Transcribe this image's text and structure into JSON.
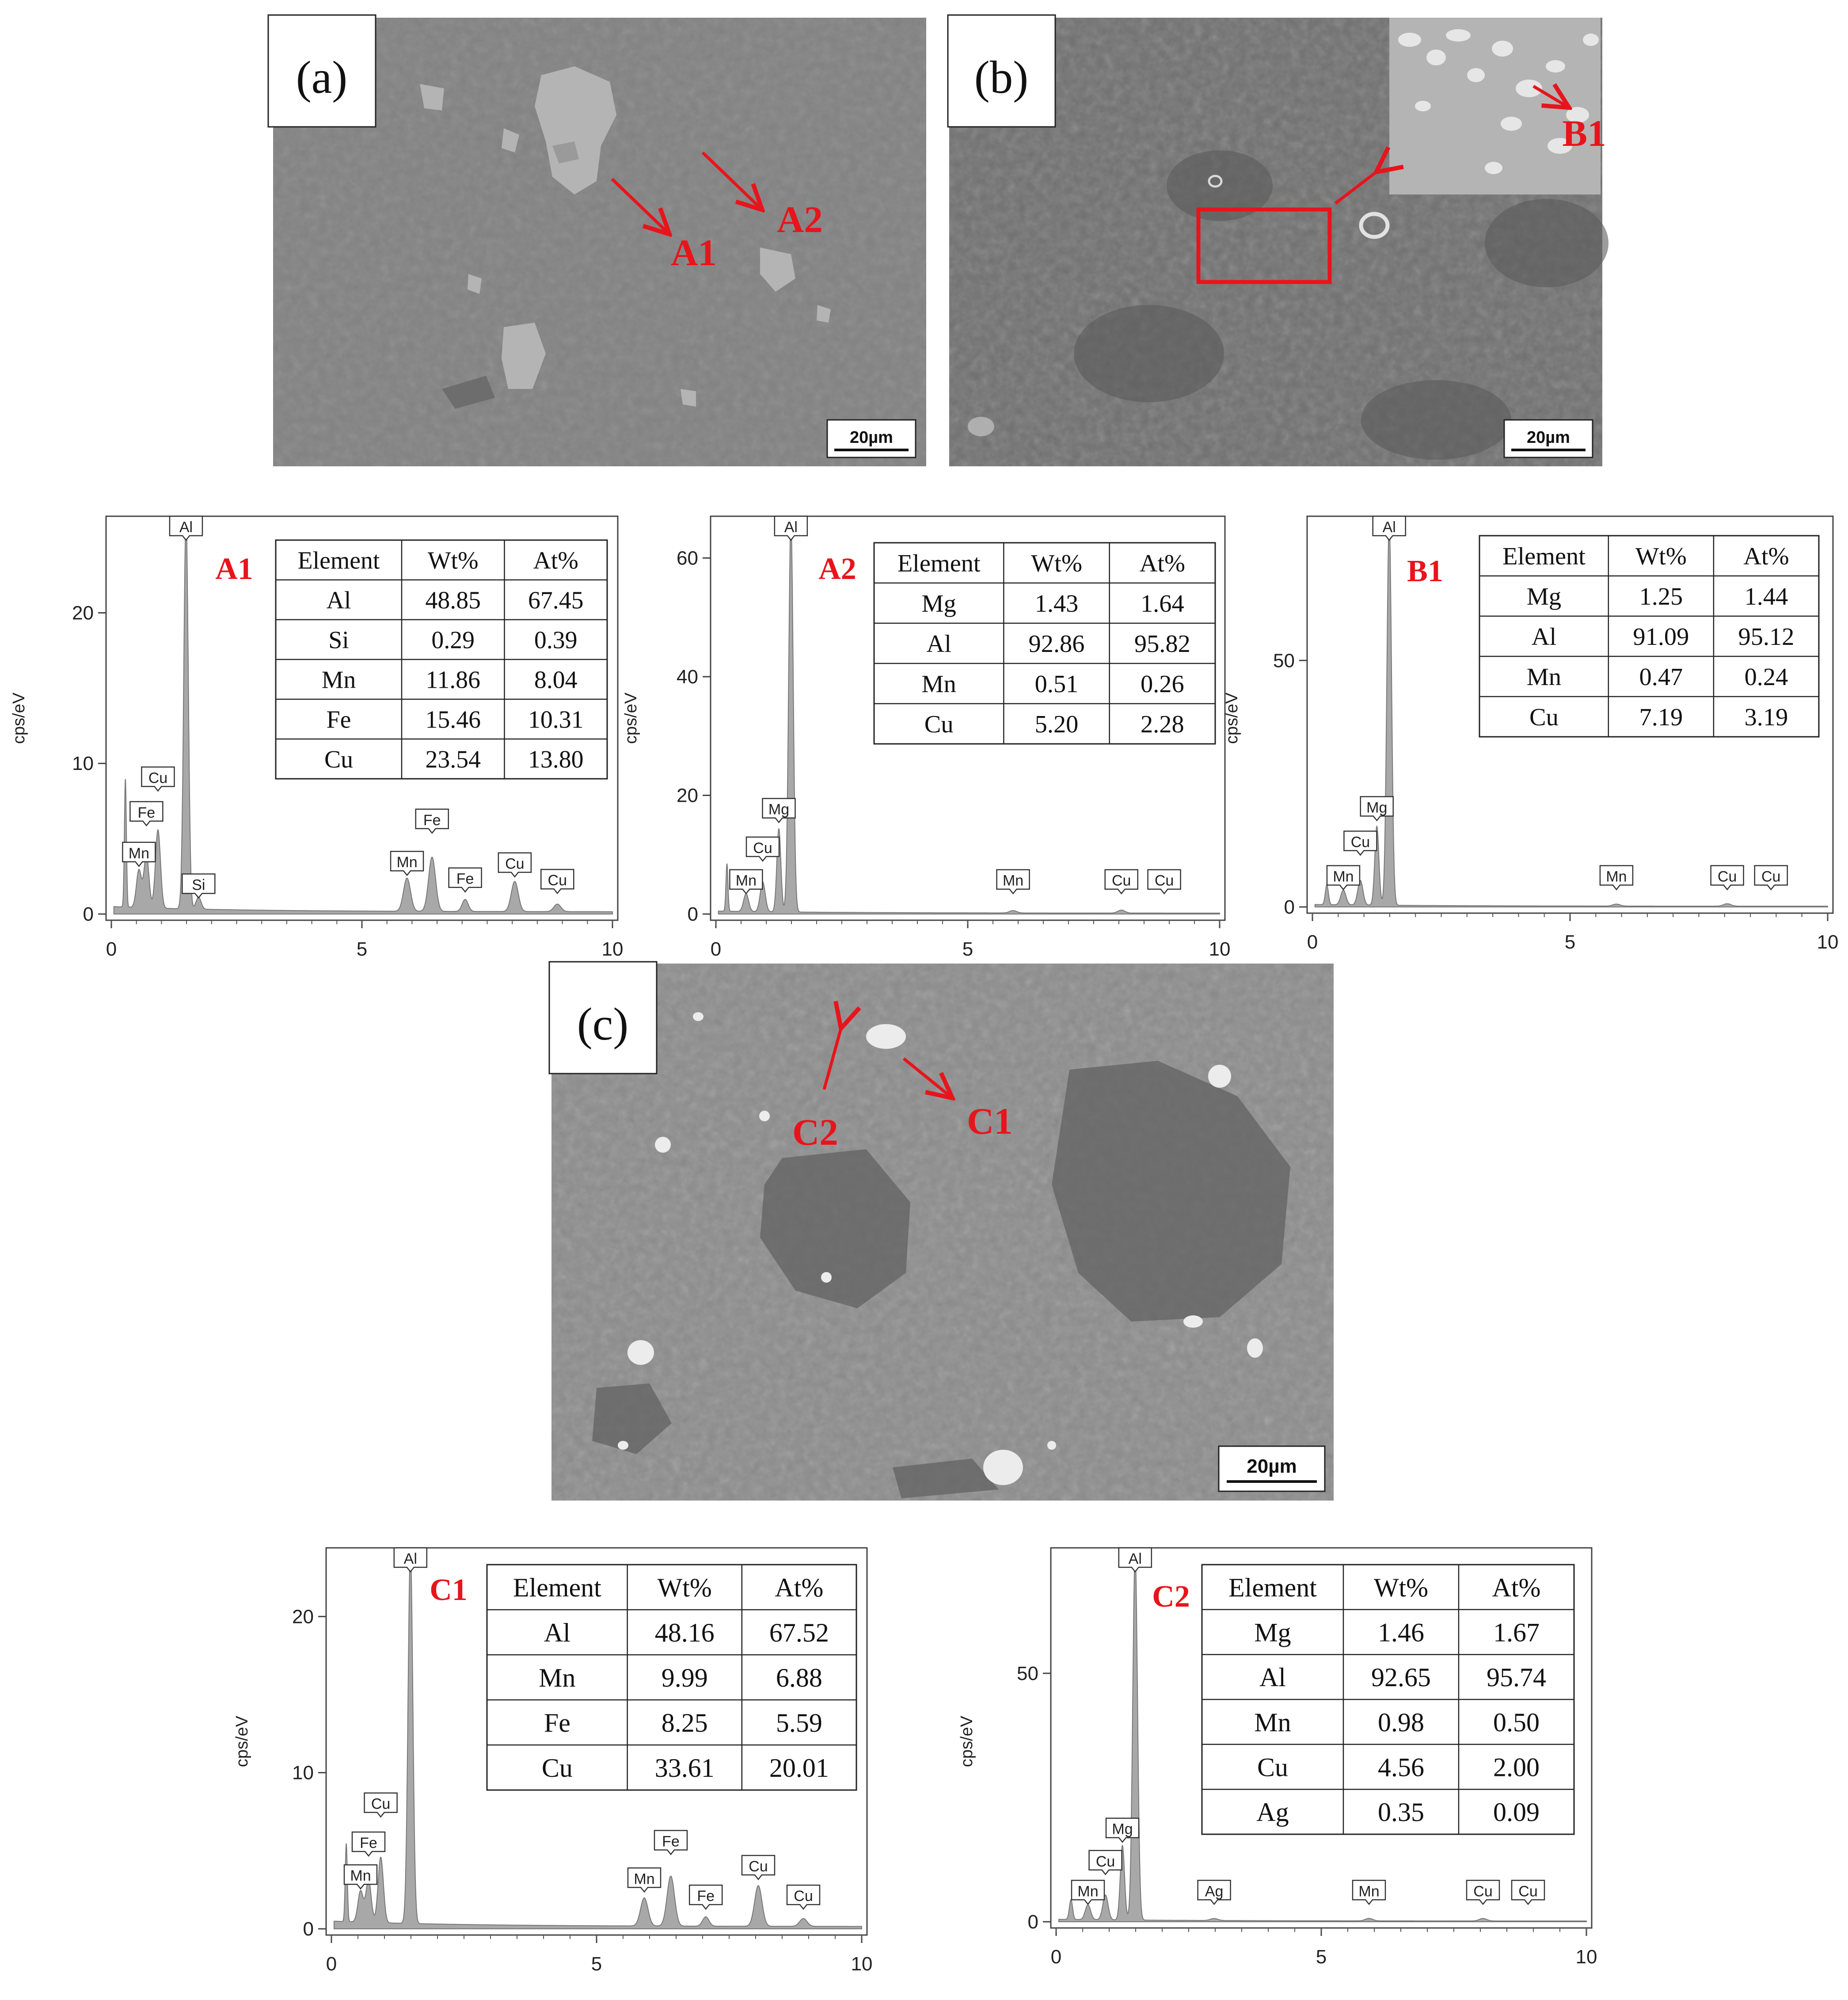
{
  "micrographs": [
    {
      "id": "a",
      "label": "(a)",
      "scale": "20µm",
      "annotations": [
        "A1",
        "A2"
      ]
    },
    {
      "id": "b",
      "label": "(b)",
      "scale": "20µm",
      "annotations": [
        "B1"
      ]
    },
    {
      "id": "c",
      "label": "(c)",
      "scale": "20µm",
      "annotations": [
        "C1",
        "C2"
      ]
    }
  ],
  "colors": {
    "annotation": "#e8141c",
    "spectrum_fill": "#a8a8a8",
    "spectrum_line": "#777777",
    "micrograph_a": "#828282",
    "micrograph_b": "#707070",
    "micrograph_c": "#8c8c8c"
  },
  "chart_data": [
    {
      "id": "A1",
      "type": "area",
      "label": "A1",
      "ylabel": "cps/eV",
      "xlim": [
        0,
        10
      ],
      "ylim": [
        0,
        26
      ],
      "xticks": [
        0,
        5,
        10
      ],
      "yticks": [
        0,
        10,
        20
      ],
      "peaks": [
        {
          "x": 0.28,
          "y": 8.5,
          "w": 0.02
        },
        {
          "x": 0.55,
          "y": 2.5,
          "w": 0.05
        },
        {
          "x": 0.7,
          "y": 3.5,
          "w": 0.05
        },
        {
          "x": 0.93,
          "y": 5.2,
          "w": 0.05
        },
        {
          "x": 1.49,
          "y": 26,
          "w": 0.045
        },
        {
          "x": 1.74,
          "y": 0.8,
          "w": 0.05
        },
        {
          "x": 5.9,
          "y": 2.2,
          "w": 0.07
        },
        {
          "x": 6.4,
          "y": 3.6,
          "w": 0.07
        },
        {
          "x": 7.06,
          "y": 0.8,
          "w": 0.06
        },
        {
          "x": 8.05,
          "y": 2.0,
          "w": 0.07
        },
        {
          "x": 8.9,
          "y": 0.5,
          "w": 0.07
        }
      ],
      "element_labels": [
        {
          "text": "Al",
          "x": 1.49,
          "y": 26.0
        },
        {
          "text": "Cu",
          "x": 0.93,
          "y": 8.0
        },
        {
          "text": "Fe",
          "x": 0.7,
          "y": 5.7
        },
        {
          "text": "Mn",
          "x": 0.55,
          "y": 3.0
        },
        {
          "text": "Si",
          "x": 1.74,
          "y": 0.9
        },
        {
          "text": "Mn",
          "x": 5.9,
          "y": 2.4
        },
        {
          "text": "Fe",
          "x": 6.4,
          "y": 5.2
        },
        {
          "text": "Fe",
          "x": 7.06,
          "y": 1.3
        },
        {
          "text": "Cu",
          "x": 8.05,
          "y": 2.3
        },
        {
          "text": "Cu",
          "x": 8.9,
          "y": 1.2
        }
      ],
      "table": {
        "columns": [
          "Element",
          "Wt%",
          "At%"
        ],
        "rows": [
          [
            "Al",
            "48.85",
            "67.45"
          ],
          [
            "Si",
            "0.29",
            "0.39"
          ],
          [
            "Mn",
            "11.86",
            "8.04"
          ],
          [
            "Fe",
            "15.46",
            "10.31"
          ],
          [
            "Cu",
            "23.54",
            "13.80"
          ]
        ]
      }
    },
    {
      "id": "A2",
      "type": "area",
      "label": "A2",
      "ylabel": "cps/eV",
      "xlim": [
        0,
        10
      ],
      "ylim": [
        0,
        66
      ],
      "xticks": [
        0,
        5,
        10
      ],
      "yticks": [
        0,
        20,
        40,
        60
      ],
      "peaks": [
        {
          "x": 0.22,
          "y": 8,
          "w": 0.02
        },
        {
          "x": 0.6,
          "y": 3,
          "w": 0.05
        },
        {
          "x": 0.93,
          "y": 5,
          "w": 0.05
        },
        {
          "x": 1.25,
          "y": 14,
          "w": 0.04
        },
        {
          "x": 1.49,
          "y": 66,
          "w": 0.045
        },
        {
          "x": 5.9,
          "y": 0.4,
          "w": 0.07
        },
        {
          "x": 8.05,
          "y": 0.5,
          "w": 0.07
        }
      ],
      "element_labels": [
        {
          "text": "Al",
          "x": 1.49,
          "y": 66
        },
        {
          "text": "Mg",
          "x": 1.25,
          "y": 15
        },
        {
          "text": "Cu",
          "x": 0.93,
          "y": 8.5
        },
        {
          "text": "Mn",
          "x": 0.6,
          "y": 3
        },
        {
          "text": "Mn",
          "x": 5.9,
          "y": 3
        },
        {
          "text": "Cu",
          "x": 8.05,
          "y": 3
        },
        {
          "text": "Cu",
          "x": 8.9,
          "y": 3
        }
      ],
      "table": {
        "columns": [
          "Element",
          "Wt%",
          "At%"
        ],
        "rows": [
          [
            "Mg",
            "1.43",
            "1.64"
          ],
          [
            "Al",
            "92.86",
            "95.82"
          ],
          [
            "Mn",
            "0.51",
            "0.26"
          ],
          [
            "Cu",
            "5.20",
            "2.28"
          ]
        ]
      }
    },
    {
      "id": "B1",
      "type": "area",
      "label": "B1",
      "ylabel": "cps/eV",
      "xlim": [
        0,
        10
      ],
      "ylim": [
        0,
        78
      ],
      "xticks": [
        0,
        5,
        10
      ],
      "yticks": [
        0,
        50
      ],
      "peaks": [
        {
          "x": 0.28,
          "y": 4,
          "w": 0.03
        },
        {
          "x": 0.6,
          "y": 3,
          "w": 0.05
        },
        {
          "x": 0.93,
          "y": 5,
          "w": 0.05
        },
        {
          "x": 1.25,
          "y": 16,
          "w": 0.04
        },
        {
          "x": 1.49,
          "y": 78,
          "w": 0.045
        },
        {
          "x": 5.9,
          "y": 0.4,
          "w": 0.07
        },
        {
          "x": 8.05,
          "y": 0.5,
          "w": 0.07
        }
      ],
      "element_labels": [
        {
          "text": "Al",
          "x": 1.49,
          "y": 78
        },
        {
          "text": "Mg",
          "x": 1.25,
          "y": 17
        },
        {
          "text": "Cu",
          "x": 0.93,
          "y": 10
        },
        {
          "text": "Mn",
          "x": 0.6,
          "y": 3
        },
        {
          "text": "Mn",
          "x": 5.9,
          "y": 3
        },
        {
          "text": "Cu",
          "x": 8.05,
          "y": 3
        },
        {
          "text": "Cu",
          "x": 8.9,
          "y": 3
        }
      ],
      "table": {
        "columns": [
          "Element",
          "Wt%",
          "At%"
        ],
        "rows": [
          [
            "Mg",
            "1.25",
            "1.44"
          ],
          [
            "Al",
            "91.09",
            "95.12"
          ],
          [
            "Mn",
            "0.47",
            "0.24"
          ],
          [
            "Cu",
            "7.19",
            "3.19"
          ]
        ]
      }
    },
    {
      "id": "C1",
      "type": "area",
      "label": "C1",
      "ylabel": "cps/eV",
      "xlim": [
        0,
        10
      ],
      "ylim": [
        0,
        24
      ],
      "xticks": [
        0,
        5,
        10
      ],
      "yticks": [
        0,
        10,
        20
      ],
      "peaks": [
        {
          "x": 0.28,
          "y": 5,
          "w": 0.02
        },
        {
          "x": 0.55,
          "y": 2,
          "w": 0.05
        },
        {
          "x": 0.7,
          "y": 2.7,
          "w": 0.05
        },
        {
          "x": 0.93,
          "y": 4.2,
          "w": 0.05
        },
        {
          "x": 1.49,
          "y": 24,
          "w": 0.045
        },
        {
          "x": 5.9,
          "y": 1.8,
          "w": 0.07
        },
        {
          "x": 6.4,
          "y": 3.2,
          "w": 0.07
        },
        {
          "x": 7.06,
          "y": 0.6,
          "w": 0.06
        },
        {
          "x": 8.05,
          "y": 2.6,
          "w": 0.07
        },
        {
          "x": 8.9,
          "y": 0.5,
          "w": 0.07
        }
      ],
      "element_labels": [
        {
          "text": "Al",
          "x": 1.49,
          "y": 24
        },
        {
          "text": "Cu",
          "x": 0.93,
          "y": 7.0
        },
        {
          "text": "Fe",
          "x": 0.7,
          "y": 4.5
        },
        {
          "text": "Mn",
          "x": 0.55,
          "y": 2.4
        },
        {
          "text": "Mn",
          "x": 5.9,
          "y": 2.2
        },
        {
          "text": "Fe",
          "x": 6.4,
          "y": 4.6
        },
        {
          "text": "Fe",
          "x": 7.06,
          "y": 1.1
        },
        {
          "text": "Cu",
          "x": 8.05,
          "y": 3.0
        },
        {
          "text": "Cu",
          "x": 8.9,
          "y": 1.1
        }
      ],
      "table": {
        "columns": [
          "Element",
          "Wt%",
          "At%"
        ],
        "rows": [
          [
            "Al",
            "48.16",
            "67.52"
          ],
          [
            "Mn",
            "9.99",
            "6.88"
          ],
          [
            "Fe",
            "8.25",
            "5.59"
          ],
          [
            "Cu",
            "33.61",
            "20.01"
          ]
        ]
      }
    },
    {
      "id": "C2",
      "type": "area",
      "label": "C2",
      "ylabel": "cps/eV",
      "xlim": [
        0,
        10
      ],
      "ylim": [
        0,
        74
      ],
      "xticks": [
        0,
        5,
        10
      ],
      "yticks": [
        0,
        50
      ],
      "peaks": [
        {
          "x": 0.28,
          "y": 4,
          "w": 0.03
        },
        {
          "x": 0.6,
          "y": 3,
          "w": 0.05
        },
        {
          "x": 0.93,
          "y": 5,
          "w": 0.05
        },
        {
          "x": 1.25,
          "y": 15,
          "w": 0.04
        },
        {
          "x": 1.49,
          "y": 74,
          "w": 0.045
        },
        {
          "x": 2.98,
          "y": 0.4,
          "w": 0.07
        },
        {
          "x": 5.9,
          "y": 0.5,
          "w": 0.07
        },
        {
          "x": 8.05,
          "y": 0.5,
          "w": 0.07
        }
      ],
      "element_labels": [
        {
          "text": "Al",
          "x": 1.49,
          "y": 74
        },
        {
          "text": "Mg",
          "x": 1.25,
          "y": 15.5
        },
        {
          "text": "Cu",
          "x": 0.93,
          "y": 9
        },
        {
          "text": "Mn",
          "x": 0.6,
          "y": 3
        },
        {
          "text": "Ag",
          "x": 2.98,
          "y": 3
        },
        {
          "text": "Mn",
          "x": 5.9,
          "y": 3
        },
        {
          "text": "Cu",
          "x": 8.05,
          "y": 3
        },
        {
          "text": "Cu",
          "x": 8.9,
          "y": 3
        }
      ],
      "table": {
        "columns": [
          "Element",
          "Wt%",
          "At%"
        ],
        "rows": [
          [
            "Mg",
            "1.46",
            "1.67"
          ],
          [
            "Al",
            "92.65",
            "95.74"
          ],
          [
            "Mn",
            "0.98",
            "0.50"
          ],
          [
            "Cu",
            "4.56",
            "2.00"
          ],
          [
            "Ag",
            "0.35",
            "0.09"
          ]
        ]
      }
    }
  ]
}
